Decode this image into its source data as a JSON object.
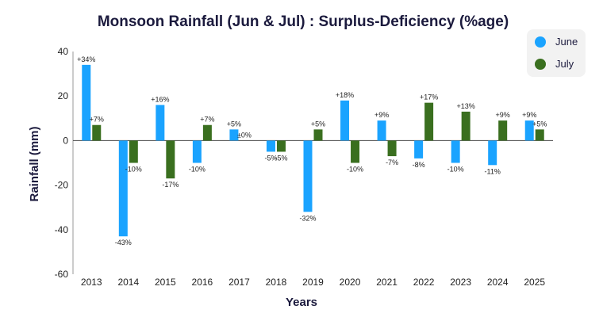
{
  "chart_data": {
    "type": "bar",
    "title": "Monsoon Rainfall (Jun & Jul) : Surplus-Deficiency (%age)",
    "xlabel": "Years",
    "ylabel": "Rainfall (mm)",
    "ylim": [
      -60,
      40
    ],
    "yticks": [
      40,
      20,
      0,
      -20,
      -40,
      -60
    ],
    "grid": false,
    "legend_position": "top-right",
    "categories": [
      "2013",
      "2014",
      "2015",
      "2016",
      "2017",
      "2018",
      "2019",
      "2020",
      "2021",
      "2022",
      "2023",
      "2024",
      "2025"
    ],
    "series": [
      {
        "name": "June",
        "color": "#1aa3ff",
        "values": [
          34,
          -43,
          16,
          -10,
          5,
          -5,
          -32,
          18,
          9,
          -8,
          -10,
          -11,
          9
        ],
        "labels": [
          "+34%",
          "-43%",
          "+16%",
          "-10%",
          "+5%",
          "-5%",
          "-32%",
          "+18%",
          "+9%",
          "-8%",
          "-10%",
          "-11%",
          "+9%"
        ]
      },
      {
        "name": "July",
        "color": "#3a6f1f",
        "values": [
          7,
          -10,
          -17,
          7,
          0,
          -5,
          5,
          -10,
          -7,
          17,
          13,
          9,
          5
        ],
        "labels": [
          "+7%",
          "-10%",
          "-17%",
          "+7%",
          "±0%",
          "-5%",
          "+5%",
          "-10%",
          "-7%",
          "+17%",
          "+13%",
          "+9%",
          "+5%"
        ]
      }
    ]
  }
}
